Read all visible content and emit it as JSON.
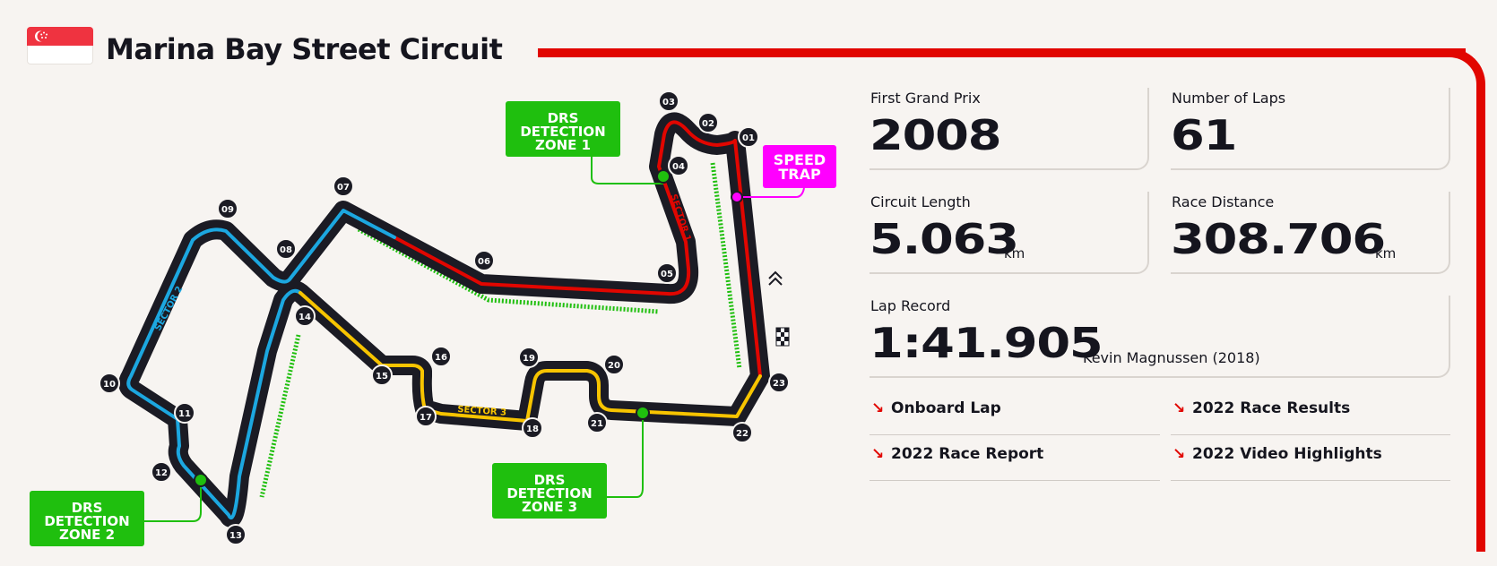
{
  "header": {
    "title": "Marina Bay Street Circuit",
    "flag_icon": "singapore-flag-icon"
  },
  "circuit_map": {
    "turns": [
      "01",
      "02",
      "03",
      "04",
      "05",
      "06",
      "07",
      "08",
      "09",
      "10",
      "11",
      "12",
      "13",
      "14",
      "15",
      "16",
      "17",
      "18",
      "19",
      "20",
      "21",
      "22",
      "23"
    ],
    "sector_labels": [
      "SECTOR 1",
      "SECTOR 2",
      "SECTOR 3"
    ],
    "drs_zone_1": [
      "DRS",
      "DETECTION",
      "ZONE 1"
    ],
    "drs_zone_2": [
      "DRS",
      "DETECTION",
      "ZONE 2"
    ],
    "drs_zone_3": [
      "DRS",
      "DETECTION",
      "ZONE 3"
    ],
    "speed_trap": [
      "SPEED",
      "TRAP"
    ],
    "colors": {
      "sector_1": "#e10600",
      "sector_2": "#1ca7e0",
      "sector_3": "#f7c400",
      "track": "#1b1b24",
      "drs": "#1fbf0e",
      "speed_trap": "#ff00ff",
      "accent": "#e10600"
    },
    "icons": [
      "chevrons-up-icon",
      "checkered-flag-icon"
    ]
  },
  "stats": {
    "first_gp": {
      "label": "First Grand Prix",
      "value": "2008"
    },
    "laps": {
      "label": "Number of Laps",
      "value": "61"
    },
    "length": {
      "label": "Circuit Length",
      "value": "5.063",
      "unit": "km"
    },
    "distance": {
      "label": "Race Distance",
      "value": "308.706",
      "unit": "km"
    },
    "lap_record": {
      "label": "Lap Record",
      "value": "1:41.905",
      "holder": "Kevin Magnussen (2018)"
    }
  },
  "links": [
    {
      "label": "Onboard Lap",
      "icon": "arrow-down-right-icon"
    },
    {
      "label": "2022 Race Results",
      "icon": "arrow-down-right-icon"
    },
    {
      "label": "2022 Race Report",
      "icon": "arrow-down-right-icon"
    },
    {
      "label": "2022 Video Highlights",
      "icon": "arrow-down-right-icon"
    }
  ]
}
